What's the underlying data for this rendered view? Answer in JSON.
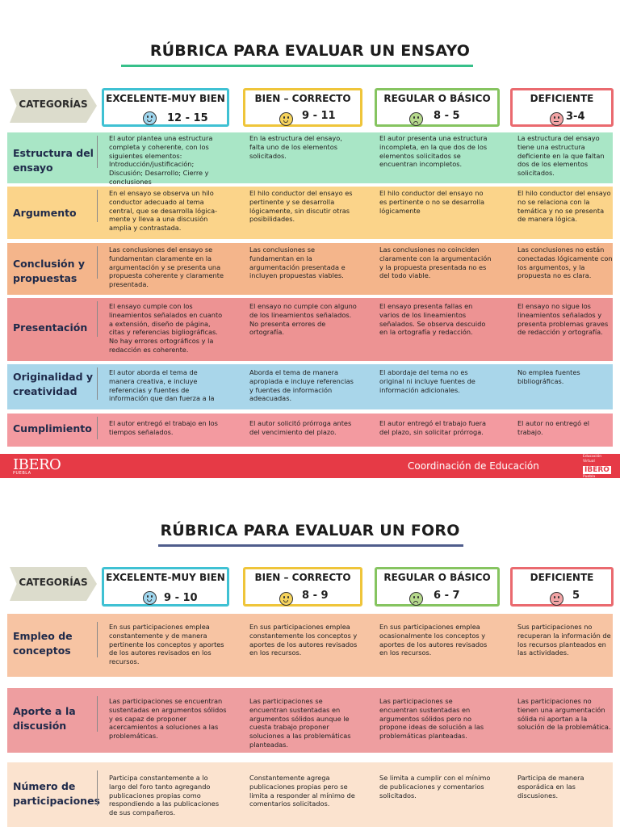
{
  "colors": {
    "excelente": "#3fc1d3",
    "bien": "#efc53a",
    "regular": "#86c460",
    "deficiente": "#ea6a6f",
    "footer": "#e63a46",
    "title_line_1": "#37c08a",
    "title_line_2": "#4f5d8c"
  },
  "ensayo": {
    "title": "RÚBRICA PARA EVALUAR UN ENSAYO",
    "categorias_label": "CATEGORÍAS",
    "headers": [
      {
        "label": "EXCELENTE-MUY BIEN",
        "score": "12 - 15",
        "face": "happy-face-icon"
      },
      {
        "label": "BIEN – CORRECTO",
        "score": "9 - 11",
        "face": "smile-face-icon"
      },
      {
        "label": "REGULAR O BÁSICO",
        "score": "8 - 5",
        "face": "sad-face-icon"
      },
      {
        "label": "DEFICIENTE",
        "score": "3-4",
        "face": "neutral-face-icon"
      }
    ],
    "rows": [
      {
        "label": "Estructura del ensayo",
        "cells": [
          "El autor plantea una estructura completa y coherente, con los siguientes elementos: Introducción/justificación; Discusión; Desarrollo; Cierre y conclusiones",
          "En la estructura del ensayo, falta uno de los elementos solicitados.",
          "El autor presenta una estructura incompleta, en la que dos de los elementos solicitados se encuentran incompletos.",
          "La estructura del ensayo tiene una estructura deficiente en la que faltan dos de los elementos solicitados."
        ]
      },
      {
        "label": "Argumento",
        "cells": [
          "En el ensayo se observa un hilo conductor adecuado al tema central, que se desarrolla lógica- mente y lleva a una discusión amplia y contrastada.",
          "El hilo conductor del ensayo es pertinente y se desarrolla lógicamente, sin discutir otras posibilidades.",
          "El hilo conductor del ensayo no es pertinente o no se desarrolla lógicamente",
          "El hilo conductor del ensayo no se relaciona con la temática y no se presenta de manera lógica."
        ]
      },
      {
        "label": "Conclusión y propuestas",
        "cells": [
          "Las conclusiones del ensayo se fundamentan claramente en la argumentación y se presenta una propuesta coherente y claramente presentada.",
          "Las conclusiones se fundamentan en la argumentación presentada e incluyen propuestas viables.",
          "Las conclusiones no coinciden claramente con la argumentación y la propuesta presentada no es del todo viable.",
          "Las conclusiones no están conectadas lógicamente con los argumentos, y la propuesta no es clara."
        ]
      },
      {
        "label": "Presentación",
        "cells": [
          "El ensayo cumple con los lineamientos señalados en cuanto a extensión, diseño de página, citas y referencias bigliográficas. No hay errores ortográficos y la redacción es coherente.",
          "El ensayo no cumple con alguno de los lineamientos señalados. No presenta errores de ortografía.",
          "El ensayo presenta fallas en varios de los lineamientos señalados. Se observa descuido en la ortografía y redacción.",
          "El ensayo no sigue los lineamientos señalados y presenta problemas graves de redacción y ortografía."
        ]
      },
      {
        "label": "Originalidad y creatividad",
        "cells": [
          "El autor aborda el tema de manera creativa, e incluye referencias y fuentes de información que dan fuerza a la",
          "Aborda el tema de manera apropiada e incluye referencias y fuentes de información adeacuadas.",
          "El abordaje del tema no es original ni incluye fuentes de información adicionales.",
          "No emplea fuentes bibliográficas."
        ]
      },
      {
        "label": "Cumplimiento",
        "cells": [
          "El autor entregó el trabajo en los tiempos señalados.",
          "El autor solicitó prórroga antes del vencimiento del plazo.",
          "El autor entregó el trabajo fuera del plazo, sin solicitar prórroga.",
          "El autor no entregó el trabajo."
        ]
      }
    ]
  },
  "footer": {
    "logo": "IBERO",
    "logo_sub": "PUEBLA",
    "coordinacion": "Coordinación de Educación",
    "badge_line1": "Educación",
    "badge_line2": "Virtual",
    "badge_logo": "IBERO",
    "badge_sub": "Puebla"
  },
  "foro": {
    "title": "RÚBRICA PARA EVALUAR UN FORO",
    "categorias_label": "CATEGORÍAS",
    "headers": [
      {
        "label": "EXCELENTE-MUY BIEN",
        "score": "9 - 10",
        "face": "happy-face-icon"
      },
      {
        "label": "BIEN – CORRECTO",
        "score": "8 - 9",
        "face": "smile-face-icon"
      },
      {
        "label": "REGULAR O BÁSICO",
        "score": "6 - 7",
        "face": "sad-face-icon"
      },
      {
        "label": "DEFICIENTE",
        "score": "5",
        "face": "neutral-face-icon"
      }
    ],
    "rows": [
      {
        "label": "Empleo de conceptos",
        "cells": [
          "En sus participaciones emplea constantemente y de manera pertinente los conceptos y aportes de los autores revisados en los recursos.",
          "En sus participaciones emplea constantemente los conceptos y aportes de los autores revisados en los recursos.",
          "En sus participaciones emplea ocasionalmente los conceptos y aportes de los autores revisados en los recursos.",
          "Sus participaciones no recuperan la información de los recursos planteados en las actividades."
        ]
      },
      {
        "label": "Aporte a la discusión",
        "cells": [
          "Las participaciones se encuentran sustentadas en argumentos sólidos y es capaz de proponer acercamientos a soluciones a las problemáticas.",
          "Las participaciones se encuentran sustentadas en argumentos sólidos aunque le cuesta trabajo proponer soluciones a las problemáticas planteadas.",
          "Las participaciones se encuentran sustentadas en argumentos sólidos pero no propone ideas de solución a las problemáticas planteadas.",
          "Las participaciones no tienen una argumentación sólida ni aportan a la solución de la problemática."
        ]
      },
      {
        "label": "Número de participaciones",
        "cells": [
          "Participa constantemente a lo largo del foro tanto agregando publicaciones propias como respondiendo a las publicaciones de sus compañeros.",
          "Constantemente agrega publicaciones propias pero se limita a responder al mínimo de comentarios solicitados.",
          "Se limita a cumplir con el mínimo de publicaciones y comentarios solicitados.",
          "Participa de manera esporádica en las discusiones."
        ]
      }
    ]
  }
}
